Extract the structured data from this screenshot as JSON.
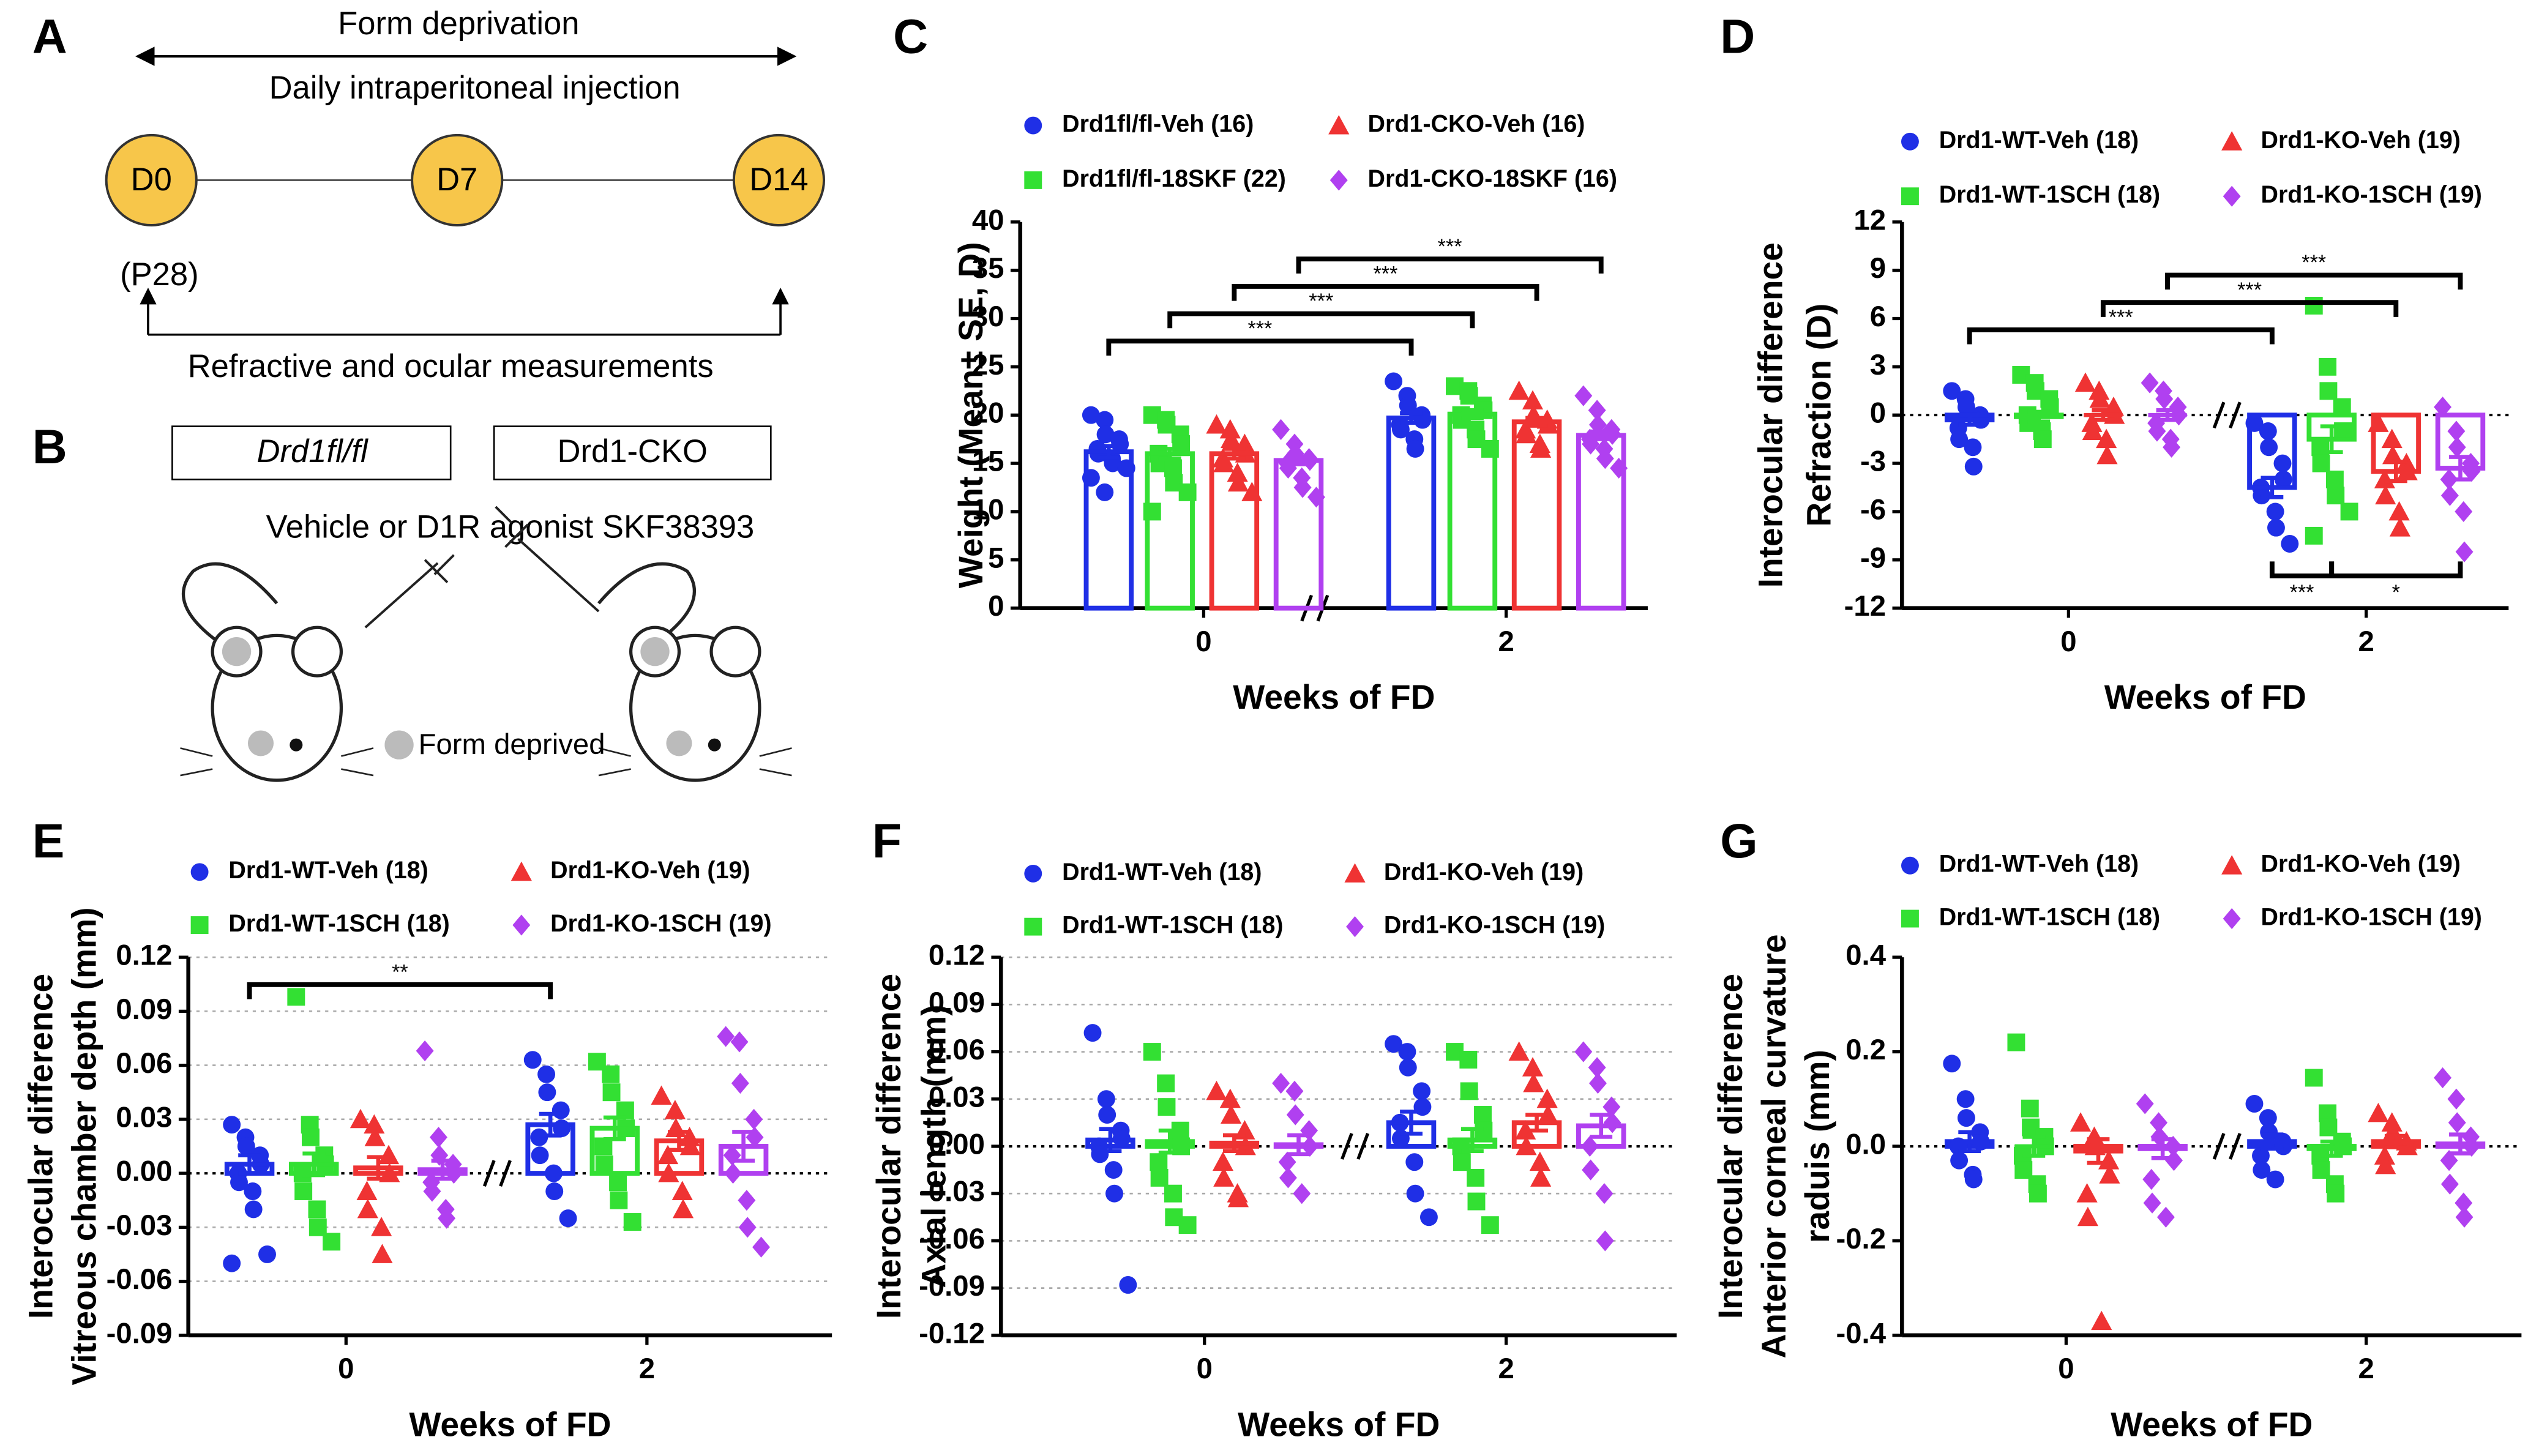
{
  "panel_labels": [
    "A",
    "B",
    "C",
    "D",
    "E",
    "F",
    "G"
  ],
  "diagram": {
    "form_deprivation": "Form deprivation",
    "injection": "Daily intraperitoneal injection",
    "days": [
      "D0",
      "D7",
      "D14"
    ],
    "age": "(P28)",
    "measurements": "Refractive and ocular measurements",
    "genotypes": [
      "Drd1fl/fl",
      "Drd1-CKO"
    ],
    "treatment": "Vehicle or D1R agonist SKF38393",
    "legend": "Form deprived"
  },
  "chart_data": [
    {
      "type": "bar",
      "ylabel": [
        "Weight (Mean± SE, D)"
      ],
      "xlabel": "Weeks of FD",
      "categories": [
        "0",
        "2"
      ],
      "ylim": [
        0,
        40
      ],
      "yticks": [
        0,
        5,
        10,
        15,
        20,
        25,
        30,
        35,
        40
      ],
      "grid": false,
      "zero_line": false,
      "series": [
        {
          "name": "Drd1fl/fl-Veh (16)",
          "color": "#1f2fe6",
          "marker": "circle",
          "values": [
            16.2,
            19.7
          ],
          "errors": [
            0.6,
            0.5
          ],
          "points": [
            [
              20,
              19.5,
              18,
              17.5,
              17,
              16.5,
              16,
              15.5,
              15,
              14.5,
              13.5,
              12
            ],
            [
              23.5,
              22,
              21,
              20,
              19.5,
              19,
              18.5,
              17.5,
              16.5
            ]
          ]
        },
        {
          "name": "Drd1fl/fl-18SKF (22)",
          "color": "#33e033",
          "marker": "square",
          "values": [
            16,
            20.1
          ],
          "errors": [
            0.5,
            0.4
          ],
          "points": [
            [
              20,
              19.5,
              19,
              18,
              17,
              16,
              15,
              14.5,
              13,
              12,
              10
            ],
            [
              23,
              22.5,
              22,
              21,
              20.5,
              20,
              19.5,
              18.5,
              17.5,
              16.5
            ]
          ]
        },
        {
          "name": "Drd1-CKO-Veh (16)",
          "color": "#ef3333",
          "marker": "triangle",
          "values": [
            16,
            19.3
          ],
          "errors": [
            0.5,
            0.4
          ],
          "points": [
            [
              19,
              18.5,
              17.5,
              17,
              16,
              15.5,
              15,
              14,
              13,
              12
            ],
            [
              22.5,
              21.5,
              20,
              19.5,
              19,
              18.5,
              18,
              17,
              16.5
            ]
          ]
        },
        {
          "name": "Drd1-CKO-18SKF (16)",
          "color": "#b040f0",
          "marker": "diamond",
          "values": [
            15.3,
            17.9
          ],
          "errors": [
            0.4,
            0.4
          ],
          "points": [
            [
              18.5,
              17,
              16,
              15.5,
              15.3,
              15,
              14.5,
              13.5,
              12.5,
              11.5
            ],
            [
              22,
              20.5,
              19,
              18.5,
              18,
              17.5,
              17,
              16.5,
              15.5,
              14.5
            ]
          ]
        }
      ],
      "comparisons": [
        {
          "label": "***",
          "series": [
            0,
            0
          ],
          "categories": [
            0,
            1
          ]
        },
        {
          "label": "***",
          "series": [
            1,
            1
          ],
          "categories": [
            0,
            1
          ]
        },
        {
          "label": "***",
          "series": [
            2,
            2
          ],
          "categories": [
            0,
            1
          ]
        },
        {
          "label": "***",
          "series": [
            3,
            3
          ],
          "categories": [
            0,
            1
          ]
        }
      ]
    },
    {
      "type": "bar",
      "ylabel": [
        "Interocular difference",
        "Refraction (D)"
      ],
      "xlabel": "Weeks of FD",
      "categories": [
        "0",
        "2"
      ],
      "ylim": [
        -12,
        12
      ],
      "yticks": [
        -12,
        -9,
        -6,
        -3,
        0,
        3,
        6,
        9,
        12
      ],
      "grid": false,
      "zero_line": true,
      "series": [
        {
          "name": "Drd1-WT-Veh (18)",
          "color": "#1f2fe6",
          "marker": "circle",
          "values": [
            -0.3,
            -4.5
          ],
          "errors": [
            0.3,
            0.6
          ],
          "points": [
            [
              1.5,
              1,
              0.5,
              0,
              -0.3,
              -0.8,
              -1.5,
              -2,
              -3.2
            ],
            [
              -0.5,
              -1,
              -2,
              -3,
              -4,
              -4.5,
              -5,
              -6,
              -7,
              -8
            ]
          ]
        },
        {
          "name": "Drd1-WT-1SCH (18)",
          "color": "#33e033",
          "marker": "square",
          "values": [
            -0.1,
            -1.5
          ],
          "errors": [
            0.3,
            0.8
          ],
          "points": [
            [
              2.5,
              2,
              1.5,
              1,
              0.5,
              0,
              -0.5,
              -1,
              -1.5
            ],
            [
              6.8,
              3,
              1.5,
              0.5,
              -1,
              -2,
              -3,
              -4,
              -5,
              -6,
              -7.5
            ]
          ]
        },
        {
          "name": "Drd1-KO-Veh (19)",
          "color": "#ef3333",
          "marker": "triangle",
          "values": [
            0,
            -3.5
          ],
          "errors": [
            0.3,
            0.6
          ],
          "points": [
            [
              2,
              1.5,
              1,
              0.5,
              0,
              -0.5,
              -1,
              -1.5,
              -2.5
            ],
            [
              -0.5,
              -1.5,
              -2.5,
              -3,
              -3.5,
              -4,
              -5,
              -6,
              -7
            ]
          ]
        },
        {
          "name": "Drd1-KO-1SCH (19)",
          "color": "#b040f0",
          "marker": "diamond",
          "values": [
            0,
            -3.3
          ],
          "errors": [
            0.3,
            0.7
          ],
          "points": [
            [
              2,
              1.5,
              1,
              0.5,
              0,
              -0.5,
              -1,
              -1.5,
              -2
            ],
            [
              0.5,
              -1,
              -2,
              -3,
              -3.5,
              -4,
              -5,
              -6,
              -8.5
            ]
          ]
        }
      ],
      "comparisons": [
        {
          "label": "***",
          "series": [
            0,
            0
          ],
          "categories": [
            0,
            1
          ]
        },
        {
          "label": "***",
          "series": [
            2,
            2
          ],
          "categories": [
            0,
            1
          ]
        },
        {
          "label": "***",
          "series": [
            3,
            3
          ],
          "categories": [
            0,
            1
          ]
        },
        {
          "label": "***",
          "series": [
            0,
            1
          ],
          "categories": [
            1,
            1
          ]
        },
        {
          "label": "*",
          "series": [
            1,
            3
          ],
          "categories": [
            1,
            1
          ]
        }
      ]
    },
    {
      "type": "bar",
      "ylabel": [
        "Interocular difference",
        "Vitreous chamber depth (mm)"
      ],
      "xlabel": "Weeks of FD",
      "categories": [
        "0",
        "2"
      ],
      "ylim": [
        -0.09,
        0.12
      ],
      "yticks": [
        -0.09,
        -0.06,
        -0.03,
        {
          "value": 0,
          "label": "0.00"
        },
        0.03,
        0.06,
        0.09,
        0.12
      ],
      "grid": true,
      "zero_line": true,
      "series": [
        {
          "name": "Drd1-WT-Veh (18)",
          "color": "#1f2fe6",
          "marker": "circle",
          "values": [
            0.005,
            0.027
          ],
          "errors": [
            0.005,
            0.006
          ],
          "points": [
            [
              0.027,
              0.02,
              0.015,
              0.01,
              0.005,
              0,
              -0.005,
              -0.01,
              -0.02,
              -0.045,
              -0.05
            ],
            [
              0.063,
              0.055,
              0.045,
              0.035,
              0.025,
              0.02,
              0.01,
              0,
              -0.01,
              -0.025
            ]
          ]
        },
        {
          "name": "Drd1-WT-1SCH (18)",
          "color": "#33e033",
          "marker": "square",
          "values": [
            0.005,
            0.025
          ],
          "errors": [
            0.006,
            0.006
          ],
          "points": [
            [
              0.098,
              0.027,
              0.02,
              0.01,
              0.005,
              0,
              -0.01,
              -0.02,
              -0.03,
              -0.038
            ],
            [
              0.062,
              0.055,
              0.045,
              0.035,
              0.025,
              0.015,
              0.005,
              -0.005,
              -0.015,
              -0.027
            ]
          ]
        },
        {
          "name": "Drd1-KO-Veh (19)",
          "color": "#ef3333",
          "marker": "triangle",
          "values": [
            0.003,
            0.018
          ],
          "errors": [
            0.006,
            0.005
          ],
          "points": [
            [
              0.03,
              0.027,
              0.02,
              0.01,
              0,
              -0.01,
              -0.02,
              -0.03,
              -0.045
            ],
            [
              0.043,
              0.035,
              0.025,
              0.02,
              0.015,
              0.01,
              0,
              -0.01,
              -0.02
            ]
          ]
        },
        {
          "name": "Drd1-KO-1SCH (19)",
          "color": "#b040f0",
          "marker": "diamond",
          "values": [
            0.002,
            0.015
          ],
          "errors": [
            0.005,
            0.008
          ],
          "points": [
            [
              0.068,
              0.02,
              0.01,
              0.005,
              0,
              -0.005,
              -0.01,
              -0.02,
              -0.025
            ],
            [
              0.076,
              0.073,
              0.05,
              0.03,
              0.02,
              0.01,
              0,
              -0.015,
              -0.03,
              -0.041
            ]
          ]
        }
      ],
      "comparisons": [
        {
          "label": "**",
          "series": [
            0,
            0
          ],
          "categories": [
            0,
            1
          ]
        }
      ]
    },
    {
      "type": "bar",
      "ylabel": [
        "Interocular difference",
        "Axial length (mm)"
      ],
      "xlabel": "Weeks of FD",
      "categories": [
        "0",
        "2"
      ],
      "ylim": [
        -0.12,
        0.12
      ],
      "yticks": [
        -0.12,
        -0.09,
        -0.06,
        -0.03,
        {
          "value": 0,
          "label": "0.00"
        },
        0.03,
        0.06,
        0.09,
        0.12
      ],
      "grid": true,
      "zero_line": true,
      "series": [
        {
          "name": "Drd1-WT-Veh (18)",
          "color": "#1f2fe6",
          "marker": "circle",
          "values": [
            0.004,
            0.015
          ],
          "errors": [
            0.007,
            0.007
          ],
          "points": [
            [
              0.072,
              0.03,
              0.02,
              0.01,
              0.005,
              0,
              -0.005,
              -0.015,
              -0.03,
              -0.088
            ],
            [
              0.065,
              0.06,
              0.05,
              0.035,
              0.025,
              0.015,
              0.005,
              -0.01,
              -0.03,
              -0.045
            ]
          ]
        },
        {
          "name": "Drd1-WT-1SCH (18)",
          "color": "#33e033",
          "marker": "square",
          "values": [
            0.003,
            0.004
          ],
          "errors": [
            0.007,
            0.007
          ],
          "points": [
            [
              0.06,
              0.04,
              0.025,
              0.01,
              0,
              -0.01,
              -0.02,
              -0.03,
              -0.045,
              -0.05
            ],
            [
              0.06,
              0.055,
              0.035,
              0.02,
              0.01,
              0,
              -0.01,
              -0.02,
              -0.035,
              -0.05
            ]
          ]
        },
        {
          "name": "Drd1-KO-Veh (19)",
          "color": "#ef3333",
          "marker": "triangle",
          "values": [
            0.002,
            0.015
          ],
          "errors": [
            0.005,
            0.005
          ],
          "points": [
            [
              0.035,
              0.03,
              0.02,
              0.01,
              0,
              -0.01,
              -0.02,
              -0.03,
              -0.033
            ],
            [
              0.06,
              0.05,
              0.04,
              0.03,
              0.02,
              0.01,
              0,
              -0.01,
              -0.02
            ]
          ]
        },
        {
          "name": "Drd1-KO-1SCH (19)",
          "color": "#b040f0",
          "marker": "diamond",
          "values": [
            0.001,
            0.013
          ],
          "errors": [
            0.006,
            0.007
          ],
          "points": [
            [
              0.04,
              0.035,
              0.02,
              0.01,
              0,
              -0.01,
              -0.02,
              -0.03
            ],
            [
              0.06,
              0.05,
              0.04,
              0.025,
              0.015,
              0,
              -0.015,
              -0.03,
              -0.06
            ]
          ]
        }
      ],
      "comparisons": []
    },
    {
      "type": "bar",
      "ylabel": [
        "Interocular difference",
        "Anterior corneal curvature",
        "raduis (mm)"
      ],
      "xlabel": "Weeks of FD",
      "categories": [
        "0",
        "2"
      ],
      "ylim": [
        -0.4,
        0.4
      ],
      "yticks": [
        -0.4,
        -0.2,
        {
          "value": 0,
          "label": "0.0"
        },
        0.2,
        0.4
      ],
      "grid": false,
      "zero_line": true,
      "series": [
        {
          "name": "Drd1-WT-Veh (18)",
          "color": "#1f2fe6",
          "marker": "circle",
          "values": [
            0.01,
            0.01
          ],
          "errors": [
            0.02,
            0.015
          ],
          "points": [
            [
              0.175,
              0.1,
              0.06,
              0.03,
              0.01,
              0,
              -0.03,
              -0.06,
              -0.07
            ],
            [
              0.09,
              0.06,
              0.03,
              0.01,
              0,
              -0.02,
              -0.05,
              -0.07
            ]
          ]
        },
        {
          "name": "Drd1-WT-1SCH (18)",
          "color": "#33e033",
          "marker": "square",
          "values": [
            0,
            -0.005
          ],
          "errors": [
            0.02,
            0.015
          ],
          "points": [
            [
              0.22,
              0.08,
              0.04,
              0.02,
              0,
              -0.02,
              -0.05,
              -0.08,
              -0.1
            ],
            [
              0.145,
              0.07,
              0.04,
              0.01,
              0,
              -0.02,
              -0.05,
              -0.08,
              -0.1
            ]
          ]
        },
        {
          "name": "Drd1-KO-Veh (19)",
          "color": "#ef3333",
          "marker": "triangle",
          "values": [
            -0.01,
            0.01
          ],
          "errors": [
            0.025,
            0.012
          ],
          "points": [
            [
              0.05,
              0.02,
              0,
              -0.03,
              -0.06,
              -0.1,
              -0.15,
              -0.37
            ],
            [
              0.07,
              0.05,
              0.03,
              0.01,
              0,
              -0.02,
              -0.04
            ]
          ]
        },
        {
          "name": "Drd1-KO-1SCH (19)",
          "color": "#b040f0",
          "marker": "diamond",
          "values": [
            -0.005,
            0.005
          ],
          "errors": [
            0.02,
            0.02
          ],
          "points": [
            [
              0.09,
              0.05,
              0.02,
              0,
              -0.03,
              -0.07,
              -0.12,
              -0.15
            ],
            [
              0.145,
              0.1,
              0.05,
              0.02,
              0,
              -0.03,
              -0.08,
              -0.12,
              -0.15
            ]
          ]
        }
      ],
      "comparisons": []
    }
  ]
}
